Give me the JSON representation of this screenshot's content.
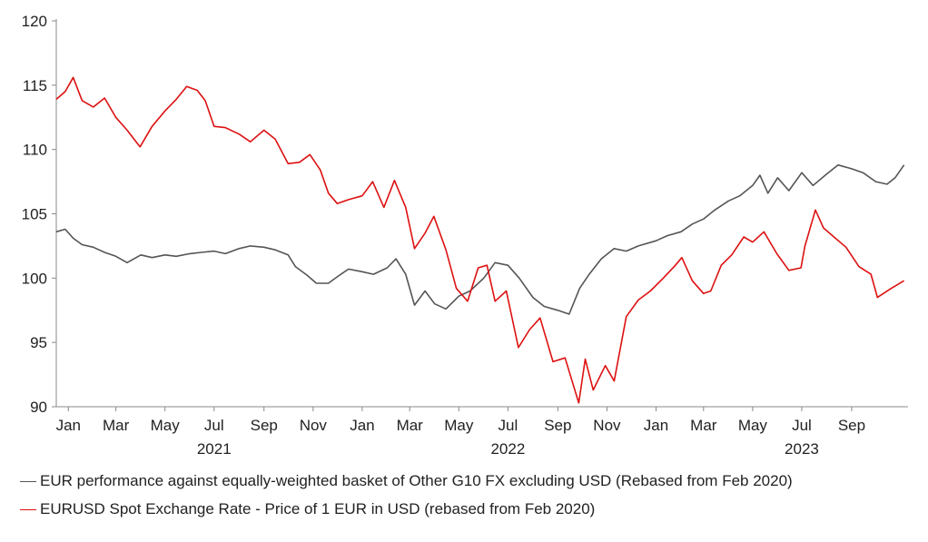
{
  "chart_data": {
    "type": "line",
    "ylim": [
      90,
      120
    ],
    "yticks": [
      90,
      95,
      100,
      105,
      110,
      115,
      120
    ],
    "xlim": [
      "2020-12-17",
      "2023-11-10"
    ],
    "month_ticks": [
      {
        "date": "2021-01-01",
        "label": "Jan"
      },
      {
        "date": "2021-03-01",
        "label": "Mar"
      },
      {
        "date": "2021-05-01",
        "label": "May"
      },
      {
        "date": "2021-07-01",
        "label": "Jul"
      },
      {
        "date": "2021-09-01",
        "label": "Sep"
      },
      {
        "date": "2021-11-01",
        "label": "Nov"
      },
      {
        "date": "2022-01-01",
        "label": "Jan"
      },
      {
        "date": "2022-03-01",
        "label": "Mar"
      },
      {
        "date": "2022-05-01",
        "label": "May"
      },
      {
        "date": "2022-07-01",
        "label": "Jul"
      },
      {
        "date": "2022-09-01",
        "label": "Sep"
      },
      {
        "date": "2022-11-01",
        "label": "Nov"
      },
      {
        "date": "2023-01-01",
        "label": "Jan"
      },
      {
        "date": "2023-03-01",
        "label": "Mar"
      },
      {
        "date": "2023-05-01",
        "label": "May"
      },
      {
        "date": "2023-07-01",
        "label": "Jul"
      },
      {
        "date": "2023-09-01",
        "label": "Sep"
      }
    ],
    "year_labels": [
      {
        "date": "2021-07-01",
        "label": "2021"
      },
      {
        "date": "2022-07-01",
        "label": "2022"
      },
      {
        "date": "2023-07-01",
        "label": "2023"
      }
    ],
    "legend_position": "bottom",
    "grid": false,
    "series": [
      {
        "name": "EUR performance against equally-weighted basket of Other G10 FX excluding USD (Rebased from Feb 2020)",
        "color": "#555555",
        "points": [
          [
            "2020-12-17",
            103.6
          ],
          [
            "2020-12-28",
            103.8
          ],
          [
            "2021-01-07",
            103.1
          ],
          [
            "2021-01-18",
            102.6
          ],
          [
            "2021-02-01",
            102.4
          ],
          [
            "2021-02-15",
            102.0
          ],
          [
            "2021-03-01",
            101.7
          ],
          [
            "2021-03-15",
            101.2
          ],
          [
            "2021-04-01",
            101.8
          ],
          [
            "2021-04-15",
            101.6
          ],
          [
            "2021-05-01",
            101.8
          ],
          [
            "2021-05-15",
            101.7
          ],
          [
            "2021-06-01",
            101.9
          ],
          [
            "2021-06-15",
            102.0
          ],
          [
            "2021-07-01",
            102.1
          ],
          [
            "2021-07-15",
            101.9
          ],
          [
            "2021-08-01",
            102.3
          ],
          [
            "2021-08-15",
            102.5
          ],
          [
            "2021-09-01",
            102.4
          ],
          [
            "2021-09-15",
            102.2
          ],
          [
            "2021-10-01",
            101.8
          ],
          [
            "2021-10-10",
            100.9
          ],
          [
            "2021-10-25",
            100.2
          ],
          [
            "2021-11-05",
            99.6
          ],
          [
            "2021-11-20",
            99.6
          ],
          [
            "2021-12-01",
            100.1
          ],
          [
            "2021-12-15",
            100.7
          ],
          [
            "2022-01-01",
            100.5
          ],
          [
            "2022-01-15",
            100.3
          ],
          [
            "2022-02-01",
            100.8
          ],
          [
            "2022-02-12",
            101.5
          ],
          [
            "2022-02-24",
            100.3
          ],
          [
            "2022-03-07",
            97.9
          ],
          [
            "2022-03-20",
            99.0
          ],
          [
            "2022-04-01",
            98.0
          ],
          [
            "2022-04-15",
            97.6
          ],
          [
            "2022-05-01",
            98.6
          ],
          [
            "2022-05-15",
            99.0
          ],
          [
            "2022-06-01",
            100.0
          ],
          [
            "2022-06-15",
            101.2
          ],
          [
            "2022-07-01",
            101.0
          ],
          [
            "2022-07-15",
            100.0
          ],
          [
            "2022-08-01",
            98.5
          ],
          [
            "2022-08-15",
            97.8
          ],
          [
            "2022-09-01",
            97.5
          ],
          [
            "2022-09-15",
            97.2
          ],
          [
            "2022-09-28",
            99.2
          ],
          [
            "2022-10-10",
            100.3
          ],
          [
            "2022-10-25",
            101.5
          ],
          [
            "2022-11-10",
            102.3
          ],
          [
            "2022-11-25",
            102.1
          ],
          [
            "2022-12-10",
            102.5
          ],
          [
            "2023-01-01",
            102.9
          ],
          [
            "2023-01-15",
            103.3
          ],
          [
            "2023-02-01",
            103.6
          ],
          [
            "2023-02-15",
            104.2
          ],
          [
            "2023-03-01",
            104.6
          ],
          [
            "2023-03-15",
            105.3
          ],
          [
            "2023-04-01",
            106.0
          ],
          [
            "2023-04-15",
            106.4
          ],
          [
            "2023-05-01",
            107.2
          ],
          [
            "2023-05-10",
            108.0
          ],
          [
            "2023-05-20",
            106.6
          ],
          [
            "2023-06-01",
            107.8
          ],
          [
            "2023-06-15",
            106.8
          ],
          [
            "2023-07-01",
            108.2
          ],
          [
            "2023-07-15",
            107.2
          ],
          [
            "2023-08-01",
            108.1
          ],
          [
            "2023-08-15",
            108.8
          ],
          [
            "2023-09-01",
            108.5
          ],
          [
            "2023-09-15",
            108.2
          ],
          [
            "2023-10-01",
            107.5
          ],
          [
            "2023-10-15",
            107.3
          ],
          [
            "2023-10-25",
            107.8
          ],
          [
            "2023-11-05",
            108.8
          ]
        ]
      },
      {
        "name": "EURUSD Spot Exchange Rate - Price of 1 EUR in USD (rebased from Feb 2020)",
        "color": "#dd1111",
        "points": [
          [
            "2020-12-17",
            113.9
          ],
          [
            "2020-12-28",
            114.5
          ],
          [
            "2021-01-07",
            115.6
          ],
          [
            "2021-01-18",
            113.8
          ],
          [
            "2021-02-01",
            113.3
          ],
          [
            "2021-02-15",
            114.0
          ],
          [
            "2021-03-01",
            112.5
          ],
          [
            "2021-03-15",
            111.5
          ],
          [
            "2021-03-31",
            110.2
          ],
          [
            "2021-04-15",
            111.8
          ],
          [
            "2021-05-01",
            113.0
          ],
          [
            "2021-05-15",
            113.9
          ],
          [
            "2021-05-28",
            114.9
          ],
          [
            "2021-06-10",
            114.6
          ],
          [
            "2021-06-20",
            113.8
          ],
          [
            "2021-07-01",
            111.8
          ],
          [
            "2021-07-15",
            111.7
          ],
          [
            "2021-08-01",
            111.2
          ],
          [
            "2021-08-15",
            110.6
          ],
          [
            "2021-09-01",
            111.5
          ],
          [
            "2021-09-15",
            110.8
          ],
          [
            "2021-10-01",
            108.9
          ],
          [
            "2021-10-15",
            109.0
          ],
          [
            "2021-10-28",
            109.6
          ],
          [
            "2021-11-10",
            108.4
          ],
          [
            "2021-11-20",
            106.6
          ],
          [
            "2021-12-01",
            105.8
          ],
          [
            "2021-12-15",
            106.1
          ],
          [
            "2022-01-01",
            106.4
          ],
          [
            "2022-01-14",
            107.5
          ],
          [
            "2022-01-28",
            105.5
          ],
          [
            "2022-02-10",
            107.6
          ],
          [
            "2022-02-24",
            105.5
          ],
          [
            "2022-03-07",
            102.3
          ],
          [
            "2022-03-20",
            103.5
          ],
          [
            "2022-03-31",
            104.8
          ],
          [
            "2022-04-15",
            102.2
          ],
          [
            "2022-04-28",
            99.2
          ],
          [
            "2022-05-12",
            98.2
          ],
          [
            "2022-05-25",
            100.8
          ],
          [
            "2022-06-05",
            101.0
          ],
          [
            "2022-06-15",
            98.2
          ],
          [
            "2022-06-29",
            99.0
          ],
          [
            "2022-07-14",
            94.6
          ],
          [
            "2022-07-28",
            96.0
          ],
          [
            "2022-08-10",
            96.9
          ],
          [
            "2022-08-26",
            93.5
          ],
          [
            "2022-09-10",
            93.8
          ],
          [
            "2022-09-27",
            90.3
          ],
          [
            "2022-10-05",
            93.7
          ],
          [
            "2022-10-15",
            91.3
          ],
          [
            "2022-10-30",
            93.2
          ],
          [
            "2022-11-10",
            92.0
          ],
          [
            "2022-11-25",
            97.0
          ],
          [
            "2022-12-10",
            98.3
          ],
          [
            "2022-12-25",
            99.0
          ],
          [
            "2023-01-10",
            100.0
          ],
          [
            "2023-01-25",
            101.0
          ],
          [
            "2023-02-02",
            101.6
          ],
          [
            "2023-02-15",
            99.8
          ],
          [
            "2023-03-01",
            98.8
          ],
          [
            "2023-03-10",
            99.0
          ],
          [
            "2023-03-23",
            101.0
          ],
          [
            "2023-04-05",
            101.8
          ],
          [
            "2023-04-20",
            103.2
          ],
          [
            "2023-05-01",
            102.8
          ],
          [
            "2023-05-15",
            103.6
          ],
          [
            "2023-05-31",
            101.9
          ],
          [
            "2023-06-15",
            100.6
          ],
          [
            "2023-06-30",
            100.8
          ],
          [
            "2023-07-05",
            102.5
          ],
          [
            "2023-07-18",
            105.3
          ],
          [
            "2023-07-28",
            103.9
          ],
          [
            "2023-08-10",
            103.2
          ],
          [
            "2023-08-25",
            102.4
          ],
          [
            "2023-09-10",
            100.9
          ],
          [
            "2023-09-25",
            100.3
          ],
          [
            "2023-10-03",
            98.5
          ],
          [
            "2023-10-20",
            99.2
          ],
          [
            "2023-11-05",
            99.8
          ]
        ]
      }
    ]
  }
}
